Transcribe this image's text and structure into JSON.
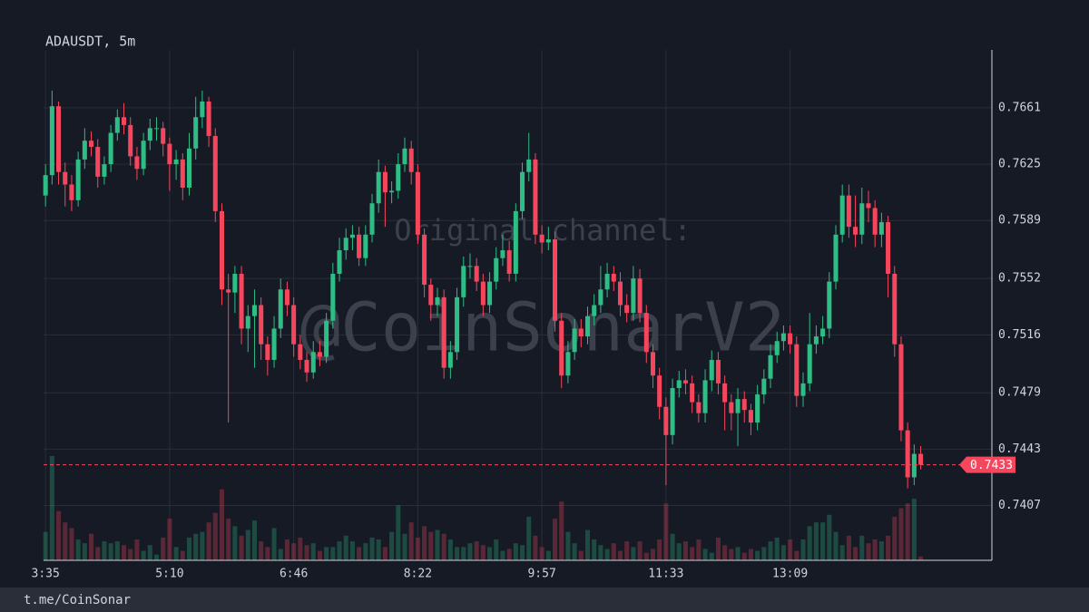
{
  "chart_data": {
    "type": "candlestick",
    "title": "ADAUSDT, 5m",
    "watermark": [
      "Original channel:",
      "@CoinSonarV2"
    ],
    "footer": "t.me/CoinSonar",
    "last_price": 0.7433,
    "up_color": "#2ebd85",
    "down_color": "#f6465d",
    "grid": true,
    "xlim": [
      -0.3,
      144.9
    ],
    "xticks": [
      {
        "value": 0,
        "label": "3:35"
      },
      {
        "value": 19,
        "label": "5:10"
      },
      {
        "value": 38,
        "label": "6:46"
      },
      {
        "value": 57,
        "label": "8:22"
      },
      {
        "value": 76,
        "label": "9:57"
      },
      {
        "value": 95,
        "label": "11:33"
      },
      {
        "value": 114,
        "label": "13:09"
      }
    ],
    "ylim": [
      0.7372,
      0.7698
    ],
    "yticks": [
      0.7407,
      0.7443,
      0.7479,
      0.7516,
      0.7552,
      0.7589,
      0.7625,
      0.7661
    ],
    "open": [
      0.7605,
      0.7618,
      0.7662,
      0.762,
      0.7612,
      0.7602,
      0.7628,
      0.764,
      0.7636,
      0.7617,
      0.7625,
      0.7645,
      0.7655,
      0.765,
      0.763,
      0.7622,
      0.764,
      0.7648,
      0.7648,
      0.7638,
      0.7625,
      0.7628,
      0.761,
      0.7635,
      0.7655,
      0.7665,
      0.7643,
      0.7595,
      0.7545,
      0.7543,
      0.7555,
      0.752,
      0.7528,
      0.7535,
      0.751,
      0.75,
      0.752,
      0.7545,
      0.7535,
      0.751,
      0.75,
      0.7492,
      0.7505,
      0.7502,
      0.7525,
      0.7555,
      0.757,
      0.7578,
      0.758,
      0.7565,
      0.758,
      0.76,
      0.762,
      0.7607,
      0.7608,
      0.7625,
      0.7635,
      0.762,
      0.758,
      0.7548,
      0.7535,
      0.754,
      0.7495,
      0.7505,
      0.754,
      0.756,
      0.756,
      0.755,
      0.7535,
      0.755,
      0.7565,
      0.757,
      0.7555,
      0.7595,
      0.762,
      0.7628,
      0.758,
      0.7575,
      0.7577,
      0.7525,
      0.749,
      0.7505,
      0.752,
      0.7515,
      0.7528,
      0.7535,
      0.7545,
      0.7555,
      0.755,
      0.7535,
      0.753,
      0.7552,
      0.753,
      0.7505,
      0.749,
      0.747,
      0.7452,
      0.7482,
      0.7487,
      0.7485,
      0.7473,
      0.7466,
      0.7487,
      0.75,
      0.7485,
      0.7473,
      0.7466,
      0.7475,
      0.7468,
      0.746,
      0.7478,
      0.7488,
      0.7503,
      0.7512,
      0.7517,
      0.751,
      0.7477,
      0.7485,
      0.751,
      0.7515,
      0.752,
      0.755,
      0.758,
      0.7605,
      0.7585,
      0.758,
      0.76,
      0.7597,
      0.758,
      0.7588,
      0.7555,
      0.751,
      0.7455,
      0.7425,
      0.744
    ],
    "high": [
      0.7625,
      0.7672,
      0.7665,
      0.7626,
      0.7618,
      0.7633,
      0.7648,
      0.7646,
      0.7641,
      0.763,
      0.765,
      0.766,
      0.7664,
      0.7655,
      0.7636,
      0.7645,
      0.7654,
      0.7655,
      0.7652,
      0.7642,
      0.7634,
      0.7632,
      0.7645,
      0.7668,
      0.7672,
      0.7668,
      0.7648,
      0.76,
      0.7555,
      0.756,
      0.756,
      0.7535,
      0.7545,
      0.754,
      0.7515,
      0.7528,
      0.7552,
      0.755,
      0.754,
      0.7516,
      0.7505,
      0.7512,
      0.7512,
      0.753,
      0.7562,
      0.7578,
      0.7584,
      0.7586,
      0.7585,
      0.7586,
      0.7606,
      0.7628,
      0.7624,
      0.7614,
      0.7632,
      0.7642,
      0.764,
      0.7625,
      0.7584,
      0.7552,
      0.7546,
      0.7545,
      0.7512,
      0.7546,
      0.7566,
      0.7568,
      0.7565,
      0.7555,
      0.7556,
      0.7572,
      0.758,
      0.7576,
      0.76,
      0.7626,
      0.7645,
      0.7632,
      0.7586,
      0.7585,
      0.7582,
      0.753,
      0.7512,
      0.7526,
      0.7526,
      0.7534,
      0.7542,
      0.756,
      0.7562,
      0.756,
      0.7556,
      0.7542,
      0.756,
      0.7558,
      0.7535,
      0.751,
      0.7495,
      0.7476,
      0.7488,
      0.7493,
      0.7494,
      0.749,
      0.7478,
      0.7494,
      0.7506,
      0.7505,
      0.749,
      0.7478,
      0.7482,
      0.748,
      0.7472,
      0.7484,
      0.7494,
      0.751,
      0.7518,
      0.7522,
      0.7522,
      0.7515,
      0.7492,
      0.753,
      0.7522,
      0.7528,
      0.7556,
      0.7586,
      0.7612,
      0.7612,
      0.7605,
      0.761,
      0.7608,
      0.7602,
      0.7594,
      0.7592,
      0.756,
      0.7515,
      0.746,
      0.7446,
      0.7445
    ],
    "low": [
      0.7598,
      0.7612,
      0.7612,
      0.7598,
      0.7595,
      0.7598,
      0.7622,
      0.763,
      0.761,
      0.7612,
      0.762,
      0.764,
      0.7644,
      0.7624,
      0.7615,
      0.7618,
      0.7634,
      0.764,
      0.763,
      0.7608,
      0.7615,
      0.7602,
      0.7605,
      0.7628,
      0.7648,
      0.7636,
      0.7588,
      0.7535,
      0.746,
      0.753,
      0.751,
      0.7505,
      0.7495,
      0.75,
      0.749,
      0.7495,
      0.7514,
      0.7528,
      0.7502,
      0.7494,
      0.7486,
      0.7488,
      0.7496,
      0.7498,
      0.752,
      0.755,
      0.7564,
      0.757,
      0.756,
      0.756,
      0.7575,
      0.7594,
      0.7585,
      0.76,
      0.7603,
      0.762,
      0.7612,
      0.7574,
      0.754,
      0.7525,
      0.7528,
      0.7488,
      0.7488,
      0.75,
      0.7534,
      0.7552,
      0.7544,
      0.7528,
      0.753,
      0.7545,
      0.756,
      0.755,
      0.755,
      0.759,
      0.7614,
      0.7574,
      0.7568,
      0.757,
      0.7518,
      0.7482,
      0.7485,
      0.75,
      0.7508,
      0.751,
      0.7522,
      0.753,
      0.754,
      0.7544,
      0.7528,
      0.7524,
      0.7525,
      0.7524,
      0.7498,
      0.7482,
      0.7462,
      0.742,
      0.7446,
      0.7476,
      0.7478,
      0.7466,
      0.746,
      0.746,
      0.748,
      0.7478,
      0.7455,
      0.7455,
      0.7445,
      0.746,
      0.7452,
      0.7455,
      0.7472,
      0.7482,
      0.7498,
      0.7506,
      0.7504,
      0.747,
      0.747,
      0.748,
      0.7504,
      0.751,
      0.7514,
      0.7545,
      0.7575,
      0.7578,
      0.7572,
      0.7574,
      0.7588,
      0.7572,
      0.7572,
      0.754,
      0.7502,
      0.7448,
      0.7418,
      0.742,
      0.743
    ],
    "close": [
      0.7618,
      0.7662,
      0.762,
      0.7612,
      0.7602,
      0.7628,
      0.764,
      0.7636,
      0.7617,
      0.7625,
      0.7645,
      0.7655,
      0.765,
      0.763,
      0.7622,
      0.764,
      0.7648,
      0.7648,
      0.7638,
      0.7625,
      0.7628,
      0.761,
      0.7635,
      0.7655,
      0.7665,
      0.7643,
      0.7595,
      0.7545,
      0.7543,
      0.7555,
      0.752,
      0.7528,
      0.7535,
      0.751,
      0.75,
      0.752,
      0.7545,
      0.7535,
      0.751,
      0.75,
      0.7492,
      0.7505,
      0.7502,
      0.7525,
      0.7555,
      0.757,
      0.7578,
      0.758,
      0.7565,
      0.758,
      0.76,
      0.762,
      0.7607,
      0.7608,
      0.7625,
      0.7635,
      0.762,
      0.758,
      0.7548,
      0.7535,
      0.754,
      0.7495,
      0.7505,
      0.754,
      0.756,
      0.756,
      0.755,
      0.7535,
      0.755,
      0.7565,
      0.757,
      0.7555,
      0.7595,
      0.762,
      0.7628,
      0.758,
      0.7575,
      0.7577,
      0.7525,
      0.749,
      0.7505,
      0.752,
      0.7515,
      0.7528,
      0.7535,
      0.7545,
      0.7555,
      0.755,
      0.7535,
      0.753,
      0.7552,
      0.753,
      0.7505,
      0.749,
      0.747,
      0.7452,
      0.7482,
      0.7487,
      0.7485,
      0.7473,
      0.7466,
      0.7487,
      0.75,
      0.7485,
      0.7473,
      0.7466,
      0.7475,
      0.7468,
      0.746,
      0.7478,
      0.7488,
      0.7503,
      0.7512,
      0.7517,
      0.751,
      0.7477,
      0.7485,
      0.751,
      0.7515,
      0.752,
      0.755,
      0.758,
      0.7605,
      0.7585,
      0.758,
      0.76,
      0.7597,
      0.758,
      0.7588,
      0.7555,
      0.751,
      0.7455,
      0.7425,
      0.744,
      0.7433
    ],
    "volume": [
      30,
      110,
      52,
      40,
      34,
      22,
      18,
      28,
      14,
      20,
      18,
      20,
      16,
      12,
      22,
      10,
      16,
      6,
      24,
      44,
      14,
      10,
      24,
      28,
      30,
      40,
      50,
      75,
      44,
      36,
      26,
      32,
      42,
      20,
      14,
      34,
      12,
      22,
      18,
      24,
      16,
      18,
      10,
      14,
      14,
      20,
      26,
      20,
      14,
      18,
      24,
      22,
      14,
      30,
      58,
      28,
      40,
      24,
      36,
      30,
      32,
      28,
      22,
      14,
      14,
      18,
      20,
      16,
      14,
      22,
      10,
      12,
      18,
      16,
      46,
      26,
      14,
      10,
      44,
      62,
      30,
      18,
      10,
      32,
      22,
      16,
      12,
      18,
      10,
      20,
      14,
      20,
      8,
      12,
      22,
      60,
      28,
      18,
      20,
      14,
      22,
      12,
      8,
      24,
      16,
      12,
      14,
      8,
      12,
      10,
      14,
      20,
      24,
      16,
      22,
      10,
      22,
      36,
      40,
      40,
      48,
      30,
      16,
      26,
      14,
      26,
      18,
      22,
      20,
      26,
      46,
      55,
      60,
      65,
      4
    ]
  }
}
